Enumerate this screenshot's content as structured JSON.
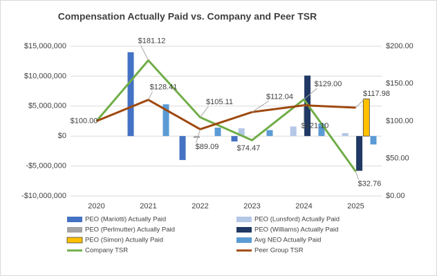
{
  "chart_data": {
    "type": "bar-line",
    "title": "Compensation Actually Paid vs. Company and Peer TSR",
    "categories": [
      "2020",
      "2021",
      "2022",
      "2023",
      "2024",
      "2025"
    ],
    "ylim": [
      -10000000,
      15000000
    ],
    "yticks": [
      {
        "value": -10000000,
        "label": "-$10,000,000"
      },
      {
        "value": -5000000,
        "label": "-$5,000,000"
      },
      {
        "value": 0,
        "label": "$0"
      },
      {
        "value": 5000000,
        "label": "$5,000,000"
      },
      {
        "value": 10000000,
        "label": "$10,000,000"
      },
      {
        "value": 15000000,
        "label": "$15,000,000"
      }
    ],
    "y2lim": [
      0,
      200
    ],
    "y2ticks": [
      {
        "value": 0,
        "label": "$0.00"
      },
      {
        "value": 50,
        "label": "$50.00"
      },
      {
        "value": 100,
        "label": "$100.00"
      },
      {
        "value": 150,
        "label": "$150.00"
      },
      {
        "value": 200,
        "label": "$200.00"
      }
    ],
    "grid": true,
    "series": [
      {
        "name": "PEO (Mariotti) Actually Paid",
        "type": "bar",
        "color": "#4472c4",
        "values": [
          null,
          14000000,
          -4000000,
          -900000,
          null,
          null
        ]
      },
      {
        "name": "PEO (Lunsford) Actually Paid",
        "type": "bar",
        "color": "#b4c7e7",
        "values": [
          null,
          null,
          null,
          1300000,
          1600000,
          500000
        ]
      },
      {
        "name": "PEO (Perlmutter) Actually Paid",
        "type": "bar",
        "color": "#a5a5a5",
        "values": [
          null,
          null,
          -300000,
          null,
          null,
          null
        ]
      },
      {
        "name": "PEO (Williams) Actually Paid",
        "type": "bar",
        "color": "#203864",
        "values": [
          null,
          null,
          null,
          null,
          10100000,
          -5800000
        ]
      },
      {
        "name": "PEO (Simon) Actually Paid",
        "type": "bar",
        "color": "#ffc000",
        "values": [
          null,
          null,
          null,
          null,
          null,
          6200000
        ]
      },
      {
        "name": "Avg NEO Actually Paid",
        "type": "bar",
        "color": "#5b9bd5",
        "values": [
          null,
          5300000,
          1400000,
          1000000,
          2100000,
          -1400000
        ]
      },
      {
        "name": "Company TSR",
        "type": "line",
        "axis": "y2",
        "color": "#70ad47",
        "values": [
          100,
          181.12,
          105.11,
          74.47,
          129.0,
          32.76
        ],
        "value_labels": [
          "$100.00",
          "$181.12",
          "$105.11",
          "$74.47",
          "$129.00",
          "$32.76"
        ]
      },
      {
        "name": "Peer Group TSR",
        "type": "line",
        "axis": "y2",
        "color": "#9e480e",
        "values": [
          100,
          128.41,
          89.09,
          112.04,
          121.1,
          117.98
        ],
        "value_labels": [
          null,
          "$128.41",
          "$89.09",
          "$112.04",
          "$121.10",
          "$117.98"
        ]
      }
    ]
  }
}
